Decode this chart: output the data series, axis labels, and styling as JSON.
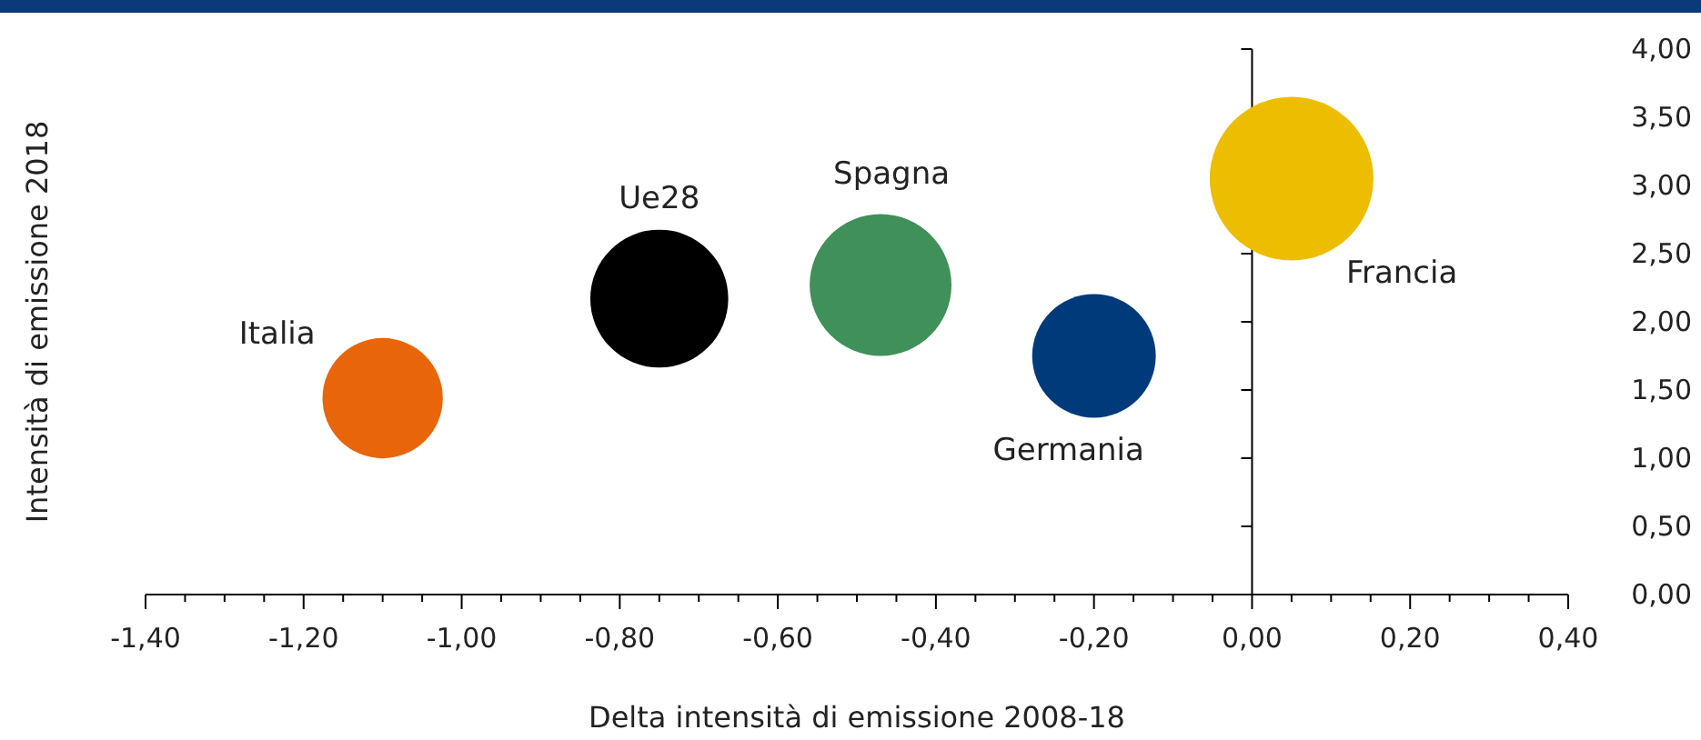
{
  "chart_data": {
    "type": "bubble",
    "xlabel": "Delta intensità di emissione 2008-18",
    "ylabel": "Intensità di emissione 2018",
    "xlim": [
      -1.4,
      0.4
    ],
    "xticks": [
      {
        "value": -1.4,
        "label": "-1,40"
      },
      {
        "value": -1.35,
        "label": null
      },
      {
        "value": -1.3,
        "label": null
      },
      {
        "value": -1.25,
        "label": null
      },
      {
        "value": -1.2,
        "label": "-1,20"
      },
      {
        "value": -1.15,
        "label": null
      },
      {
        "value": -1.1,
        "label": null
      },
      {
        "value": -1.05,
        "label": null
      },
      {
        "value": -1.0,
        "label": "-1,00"
      },
      {
        "value": -0.95,
        "label": null
      },
      {
        "value": -0.9,
        "label": null
      },
      {
        "value": -0.85,
        "label": null
      },
      {
        "value": -0.8,
        "label": "-0,80"
      },
      {
        "value": -0.75,
        "label": null
      },
      {
        "value": -0.7,
        "label": null
      },
      {
        "value": -0.65,
        "label": null
      },
      {
        "value": -0.6,
        "label": "-0,60"
      },
      {
        "value": -0.55,
        "label": null
      },
      {
        "value": -0.5,
        "label": null
      },
      {
        "value": -0.45,
        "label": null
      },
      {
        "value": -0.4,
        "label": "-0,40"
      },
      {
        "value": -0.35,
        "label": null
      },
      {
        "value": -0.3,
        "label": null
      },
      {
        "value": -0.25,
        "label": null
      },
      {
        "value": -0.2,
        "label": "-0,20"
      },
      {
        "value": -0.15,
        "label": null
      },
      {
        "value": -0.1,
        "label": null
      },
      {
        "value": -0.05,
        "label": null
      },
      {
        "value": 0,
        "label": "0,00"
      },
      {
        "value": 0.05,
        "label": null
      },
      {
        "value": 0.1,
        "label": null
      },
      {
        "value": 0.15,
        "label": null
      },
      {
        "value": 0.2,
        "label": "0,20"
      },
      {
        "value": 0.25,
        "label": null
      },
      {
        "value": 0.3,
        "label": null
      },
      {
        "value": 0.35,
        "label": null
      },
      {
        "value": 0.4,
        "label": "0,40"
      }
    ],
    "ylim": [
      0,
      4
    ],
    "yticks": [
      {
        "value": 0,
        "label": "0,00"
      },
      {
        "value": 0.5,
        "label": "0,50"
      },
      {
        "value": 1,
        "label": "1,00"
      },
      {
        "value": 1.5,
        "label": "1,50"
      },
      {
        "value": 2,
        "label": "2,00"
      },
      {
        "value": 2.5,
        "label": "2,50"
      },
      {
        "value": 3,
        "label": "3,00"
      },
      {
        "value": 3.5,
        "label": "3,50"
      },
      {
        "value": 4,
        "label": "4,00"
      }
    ],
    "series": [
      {
        "name": "Italia",
        "color": "#e8650a",
        "x": [
          -1.1
        ],
        "values": [
          1.44
        ],
        "sizes": [
          0.54
        ]
      },
      {
        "name": "Ue28",
        "color": "#000000",
        "x": [
          -0.75
        ],
        "values": [
          2.17
        ],
        "sizes": [
          0.71
        ]
      },
      {
        "name": "Spagna",
        "color": "#3f9059",
        "x": [
          -0.47
        ],
        "values": [
          2.27
        ],
        "sizes": [
          0.75
        ]
      },
      {
        "name": "Germania",
        "color": "#003a7a",
        "x": [
          -0.2
        ],
        "values": [
          1.75
        ],
        "sizes": [
          0.57
        ]
      },
      {
        "name": "Francia",
        "color": "#ecbd00",
        "x": [
          0.05
        ],
        "values": [
          3.05
        ],
        "sizes": [
          1
        ]
      }
    ]
  }
}
